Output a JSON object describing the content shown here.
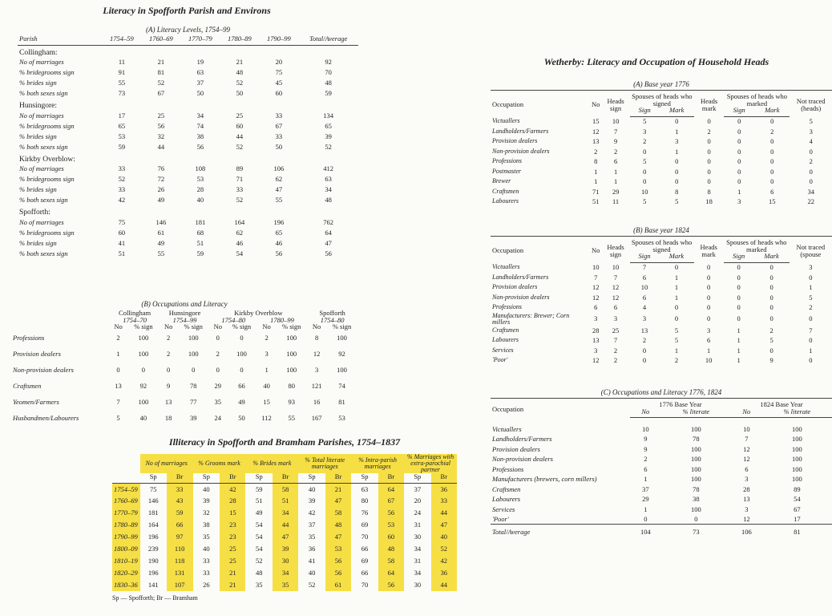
{
  "left": {
    "title": "Literacy in Spofforth Parish and Environs",
    "table_a": {
      "caption": "(A) Literacy Levels, 1754–99",
      "columns": [
        "Parish",
        "1754–59",
        "1760–69",
        "1770–79",
        "1780–89",
        "1790–99",
        "Total/Average"
      ],
      "groups": [
        {
          "name": "Collingham:",
          "rows": [
            {
              "label": "No of marriages",
              "values": [
                11,
                21,
                19,
                21,
                20,
                92
              ]
            },
            {
              "label": "% bridegrooms sign",
              "values": [
                91,
                81,
                63,
                48,
                75,
                70
              ]
            },
            {
              "label": "% brides sign",
              "values": [
                55,
                52,
                37,
                52,
                45,
                48
              ]
            },
            {
              "label": "% both sexes sign",
              "values": [
                73,
                67,
                50,
                50,
                60,
                59
              ]
            }
          ]
        },
        {
          "name": "Hunsingore:",
          "rows": [
            {
              "label": "No of marriages",
              "values": [
                17,
                25,
                34,
                25,
                33,
                134
              ]
            },
            {
              "label": "% bridegrooms sign",
              "values": [
                65,
                56,
                74,
                60,
                67,
                65
              ]
            },
            {
              "label": "% brides sign",
              "values": [
                53,
                32,
                38,
                44,
                33,
                39
              ]
            },
            {
              "label": "% both sexes sign",
              "values": [
                59,
                44,
                56,
                52,
                50,
                52
              ]
            }
          ]
        },
        {
          "name": "Kirkby Overblow:",
          "rows": [
            {
              "label": "No of marriages",
              "values": [
                33,
                76,
                108,
                89,
                106,
                412
              ]
            },
            {
              "label": "% bridegrooms sign",
              "values": [
                52,
                72,
                53,
                71,
                62,
                63
              ]
            },
            {
              "label": "% brides sign",
              "values": [
                33,
                26,
                28,
                33,
                47,
                34
              ]
            },
            {
              "label": "% both sexes sign",
              "values": [
                42,
                49,
                40,
                52,
                55,
                48
              ]
            }
          ]
        },
        {
          "name": "Spofforth:",
          "rows": [
            {
              "label": "No of marriages",
              "values": [
                75,
                146,
                181,
                164,
                196,
                762
              ]
            },
            {
              "label": "% bridegrooms sign",
              "values": [
                60,
                61,
                68,
                62,
                65,
                64
              ]
            },
            {
              "label": "% brides sign",
              "values": [
                41,
                49,
                51,
                46,
                46,
                47
              ]
            },
            {
              "label": "% both sexes sign",
              "values": [
                51,
                55,
                59,
                54,
                56,
                56
              ]
            }
          ]
        }
      ]
    },
    "table_b": {
      "caption": "(B) Occupations and Literacy",
      "groups": [
        {
          "name": "Collingham",
          "periods": [
            "1754–70"
          ]
        },
        {
          "name": "Hunsingore",
          "periods": [
            "1754–99"
          ]
        },
        {
          "name": "Kirkby Overblow",
          "periods": [
            "1754–80",
            "1780–99"
          ]
        },
        {
          "name": "Spofforth",
          "periods": [
            "1754–80"
          ]
        }
      ],
      "subcolumns": [
        "No",
        "% sign"
      ],
      "rows": [
        {
          "label": "Professions",
          "values": [
            2,
            100,
            2,
            100,
            0,
            0,
            2,
            100,
            8,
            100
          ]
        },
        {
          "label": "Provision dealers",
          "values": [
            1,
            100,
            2,
            100,
            2,
            100,
            3,
            100,
            12,
            92
          ]
        },
        {
          "label": "Non-provision dealers",
          "values": [
            0,
            0,
            0,
            0,
            0,
            0,
            1,
            100,
            3,
            100
          ]
        },
        {
          "label": "Craftsmen",
          "values": [
            13,
            92,
            9,
            78,
            29,
            66,
            40,
            80,
            121,
            74
          ]
        },
        {
          "label": "Yeomen/Farmers",
          "values": [
            7,
            100,
            13,
            77,
            35,
            49,
            15,
            93,
            16,
            81
          ]
        },
        {
          "label": "Husbandmen/Labourers",
          "values": [
            5,
            40,
            18,
            39,
            24,
            50,
            112,
            55,
            167,
            53
          ]
        }
      ]
    }
  },
  "illiteracy": {
    "title": "Illiteracy in Spofforth and Bramham Parishes, 1754–1837",
    "columns": [
      "No of marriages",
      "% Grooms mark",
      "% Brides mark",
      "% Total literate marriages",
      "% Intra-parish marriages",
      "% Marriages with extra-parochial partner"
    ],
    "subcolumns": [
      "Sp",
      "Br"
    ],
    "rows": [
      {
        "period": "1754–59",
        "values": [
          75,
          33,
          40,
          42,
          59,
          58,
          40,
          21,
          63,
          64,
          37,
          36
        ]
      },
      {
        "period": "1760–69",
        "values": [
          146,
          43,
          39,
          28,
          51,
          51,
          39,
          47,
          80,
          67,
          20,
          33
        ]
      },
      {
        "period": "1770–79",
        "values": [
          181,
          59,
          32,
          15,
          49,
          34,
          42,
          58,
          76,
          56,
          24,
          44
        ]
      },
      {
        "period": "1780–89",
        "values": [
          164,
          66,
          38,
          23,
          54,
          44,
          37,
          48,
          69,
          53,
          31,
          47
        ]
      },
      {
        "period": "1790–99",
        "values": [
          196,
          97,
          35,
          23,
          54,
          47,
          35,
          47,
          70,
          60,
          30,
          40
        ]
      },
      {
        "period": "1800–09",
        "values": [
          239,
          110,
          40,
          25,
          54,
          39,
          36,
          53,
          66,
          48,
          34,
          52
        ]
      },
      {
        "period": "1810–19",
        "values": [
          190,
          118,
          33,
          25,
          52,
          30,
          41,
          56,
          69,
          58,
          31,
          42
        ]
      },
      {
        "period": "1820–29",
        "values": [
          196,
          131,
          33,
          21,
          48,
          34,
          40,
          56,
          66,
          64,
          34,
          36
        ]
      },
      {
        "period": "1830–36",
        "values": [
          141,
          107,
          26,
          21,
          35,
          35,
          52,
          61,
          70,
          56,
          30,
          44
        ]
      }
    ],
    "footnote": "Sp — Spofforth; Br — Bramham"
  },
  "wetherby": {
    "title": "Wetherby: Literacy and Occupation of Household Heads",
    "table_a": {
      "caption": "(A) Base year 1776",
      "columns": [
        "Occupation",
        "No",
        "Heads sign",
        "Spouses of heads who signed",
        "Heads mark",
        "Spouses of heads who marked",
        "Not traced (heads)"
      ],
      "subcolumns": [
        "Sign",
        "Mark"
      ],
      "rows": [
        {
          "label": "Victuallers",
          "values": [
            15,
            10,
            5,
            0,
            0,
            0,
            0,
            5
          ]
        },
        {
          "label": "Landholders/Farmers",
          "values": [
            12,
            7,
            3,
            1,
            2,
            0,
            2,
            3
          ]
        },
        {
          "label": "Provision dealers",
          "values": [
            13,
            9,
            2,
            3,
            0,
            0,
            0,
            4
          ]
        },
        {
          "label": "Non-provision dealers",
          "values": [
            2,
            2,
            0,
            1,
            0,
            0,
            0,
            0
          ]
        },
        {
          "label": "Professions",
          "values": [
            8,
            6,
            5,
            0,
            0,
            0,
            0,
            2
          ]
        },
        {
          "label": "Postmaster",
          "values": [
            1,
            1,
            0,
            0,
            0,
            0,
            0,
            0
          ]
        },
        {
          "label": "Brewer",
          "values": [
            1,
            1,
            0,
            0,
            0,
            0,
            0,
            0
          ]
        },
        {
          "label": "Craftsmen",
          "values": [
            71,
            29,
            10,
            8,
            8,
            1,
            6,
            34
          ]
        },
        {
          "label": "Labourers",
          "values": [
            51,
            11,
            5,
            5,
            18,
            3,
            15,
            22
          ]
        }
      ]
    },
    "table_b": {
      "caption": "(B) Base year 1824",
      "columns": [
        "Occupation",
        "No",
        "Heads sign",
        "Spouses of heads who signed",
        "Heads mark",
        "Spouses of heads who marked",
        "Not traced (spouse"
      ],
      "subcolumns": [
        "Sign",
        "Mark"
      ],
      "rows": [
        {
          "label": "Victuallers",
          "values": [
            10,
            10,
            7,
            0,
            0,
            0,
            0,
            3
          ]
        },
        {
          "label": "Landholders/Farmers",
          "values": [
            7,
            7,
            6,
            1,
            0,
            0,
            0,
            0
          ]
        },
        {
          "label": "Provision dealers",
          "values": [
            12,
            12,
            10,
            1,
            0,
            0,
            0,
            1
          ]
        },
        {
          "label": "Non-provision dealers",
          "values": [
            12,
            12,
            6,
            1,
            0,
            0,
            0,
            5
          ]
        },
        {
          "label": "Professions",
          "values": [
            6,
            6,
            4,
            0,
            0,
            0,
            0,
            2
          ]
        },
        {
          "label": "Manufacturers: Brewer; Corn millers",
          "values": [
            3,
            3,
            3,
            0,
            0,
            0,
            0,
            0
          ]
        },
        {
          "label": "Craftsmen",
          "values": [
            28,
            25,
            13,
            5,
            3,
            1,
            2,
            7
          ]
        },
        {
          "label": "Labourers",
          "values": [
            13,
            7,
            2,
            5,
            6,
            1,
            5,
            0
          ]
        },
        {
          "label": "Services",
          "values": [
            3,
            2,
            0,
            1,
            1,
            1,
            0,
            1
          ]
        },
        {
          "label": "'Poor'",
          "values": [
            12,
            2,
            0,
            2,
            10,
            1,
            9,
            0
          ]
        }
      ]
    },
    "table_c": {
      "caption": "(C) Occupations and Literacy 1776, 1824",
      "occupation": "Occupation",
      "groups": [
        "1776 Base Year",
        "1824 Base Year"
      ],
      "subcolumns": [
        "No",
        "% literate"
      ],
      "rows": [
        {
          "label": "Victuallers",
          "values": [
            10,
            100,
            10,
            100
          ]
        },
        {
          "label": "Landholders/Farmers",
          "values": [
            9,
            78,
            7,
            100
          ]
        },
        {
          "label": "Provision dealers",
          "values": [
            9,
            100,
            12,
            100
          ]
        },
        {
          "label": "Non-provision dealers",
          "values": [
            2,
            100,
            12,
            100
          ]
        },
        {
          "label": "Professions",
          "values": [
            6,
            100,
            6,
            100
          ]
        },
        {
          "label": "Manufacturers (brewers, corn millers)",
          "values": [
            1,
            100,
            3,
            100
          ]
        },
        {
          "label": "Craftsmen",
          "values": [
            37,
            78,
            28,
            89
          ]
        },
        {
          "label": "Labourers",
          "values": [
            29,
            38,
            13,
            54
          ]
        },
        {
          "label": "Services",
          "values": [
            1,
            100,
            3,
            67
          ]
        },
        {
          "label": "'Poor'",
          "values": [
            0,
            0,
            12,
            17
          ]
        }
      ],
      "total": {
        "label": "Total/Average",
        "values": [
          104,
          73,
          106,
          81
        ]
      }
    }
  }
}
